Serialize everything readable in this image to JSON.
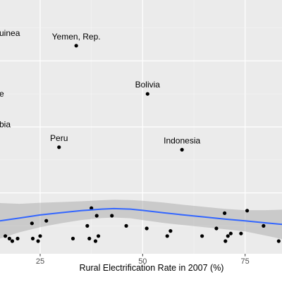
{
  "chart_data": {
    "type": "scatter",
    "title": "",
    "xlabel": "Rural Electrification Rate in 2007 (%)",
    "ylabel": "",
    "xlim": [
      15.2,
      84
    ],
    "ylim": [
      0,
      1
    ],
    "x_ticks": [
      25,
      50,
      75
    ],
    "x_tick_labels": [
      "25",
      "50",
      "75"
    ],
    "grid": true,
    "points": [
      {
        "x": 16.5,
        "y": 0.07
      },
      {
        "x": 17.5,
        "y": 0.06
      },
      {
        "x": 18.2,
        "y": 0.05
      },
      {
        "x": 19.5,
        "y": 0.06
      },
      {
        "x": 23.0,
        "y": 0.12
      },
      {
        "x": 23.2,
        "y": 0.06
      },
      {
        "x": 24.5,
        "y": 0.05
      },
      {
        "x": 25.0,
        "y": 0.07
      },
      {
        "x": 26.5,
        "y": 0.13
      },
      {
        "x": 33.0,
        "y": 0.06
      },
      {
        "x": 36.5,
        "y": 0.11
      },
      {
        "x": 37.0,
        "y": 0.06
      },
      {
        "x": 37.5,
        "y": 0.18
      },
      {
        "x": 38.5,
        "y": 0.05
      },
      {
        "x": 39.2,
        "y": 0.07
      },
      {
        "x": 38.8,
        "y": 0.15
      },
      {
        "x": 42.5,
        "y": 0.15
      },
      {
        "x": 46.0,
        "y": 0.11
      },
      {
        "x": 51.0,
        "y": 0.1
      },
      {
        "x": 56.0,
        "y": 0.07
      },
      {
        "x": 56.8,
        "y": 0.09
      },
      {
        "x": 64.5,
        "y": 0.07
      },
      {
        "x": 68.0,
        "y": 0.1
      },
      {
        "x": 70.0,
        "y": 0.16
      },
      {
        "x": 70.2,
        "y": 0.05
      },
      {
        "x": 70.8,
        "y": 0.07
      },
      {
        "x": 71.5,
        "y": 0.08
      },
      {
        "x": 74.0,
        "y": 0.08
      },
      {
        "x": 75.5,
        "y": 0.17
      },
      {
        "x": 79.5,
        "y": 0.11
      },
      {
        "x": 83.2,
        "y": 0.05
      }
    ],
    "labeled_points": [
      {
        "label": "Yemen, Rep.",
        "x": 33.8,
        "y": 0.82
      },
      {
        "label": "Bolivia",
        "x": 51.2,
        "y": 0.63
      },
      {
        "label": "Peru",
        "x": 29.6,
        "y": 0.42
      },
      {
        "label": "Indonesia",
        "x": 59.6,
        "y": 0.41
      }
    ],
    "edge_labels": [
      {
        "label": "uinea",
        "y": 0.87
      },
      {
        "label": "e",
        "y": 0.63
      },
      {
        "label": "bia",
        "y": 0.51
      }
    ],
    "smooth": {
      "color": "#3366ff",
      "band_color": "#999999",
      "x": [
        15.2,
        20,
        25,
        30,
        35,
        40,
        43,
        47,
        50,
        55,
        60,
        65,
        70,
        75,
        80,
        84
      ],
      "y": [
        0.13,
        0.141,
        0.153,
        0.162,
        0.17,
        0.176,
        0.178,
        0.176,
        0.171,
        0.162,
        0.153,
        0.145,
        0.137,
        0.13,
        0.122,
        0.116
      ],
      "lower": [
        0.06,
        0.085,
        0.105,
        0.12,
        0.133,
        0.141,
        0.143,
        0.14,
        0.133,
        0.122,
        0.113,
        0.105,
        0.097,
        0.088,
        0.072,
        0.058
      ],
      "upper": [
        0.2,
        0.197,
        0.201,
        0.204,
        0.207,
        0.211,
        0.213,
        0.212,
        0.209,
        0.202,
        0.193,
        0.185,
        0.177,
        0.172,
        0.172,
        0.174
      ]
    }
  }
}
